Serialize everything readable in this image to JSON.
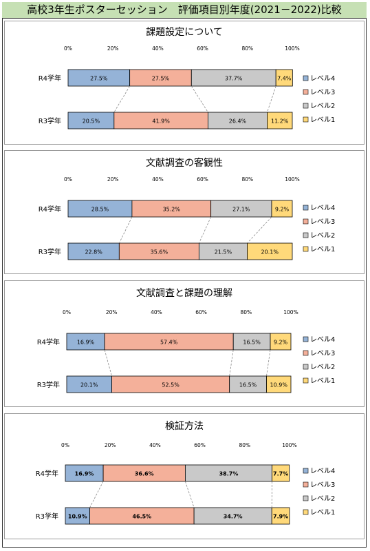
{
  "page": {
    "title": "高校3年生ポスターセッション　評価項目別年度(2021－2022)比較"
  },
  "colors": {
    "level4": "#95b3d7",
    "level3": "#f4b09a",
    "level2": "#c9c9c9",
    "level1": "#ffd97a",
    "title_bg": "#c6e0b4"
  },
  "chart_data": [
    {
      "type": "bar",
      "stacked": "horizontal-100%",
      "title": "課題設定について",
      "categories": [
        "R4学年",
        "R3学年"
      ],
      "series": [
        {
          "name": "レベル4",
          "values": [
            27.5,
            20.5
          ]
        },
        {
          "name": "レベル3",
          "values": [
            27.5,
            41.9
          ]
        },
        {
          "name": "レベル2",
          "values": [
            37.7,
            26.4
          ]
        },
        {
          "name": "レベル1",
          "values": [
            7.4,
            11.2
          ]
        }
      ],
      "labels": [
        [
          "27.5%",
          "27.5%",
          "37.7%",
          "7.4%"
        ],
        [
          "20.5%",
          "41.9%",
          "26.4%",
          "11.2%"
        ]
      ],
      "xticks": [
        "0%",
        "20%",
        "40%",
        "60%",
        "80%",
        "100%"
      ],
      "xlim": [
        0,
        100
      ],
      "grid": false,
      "legend": "right",
      "bold_labels": false
    },
    {
      "type": "bar",
      "stacked": "horizontal-100%",
      "title": "文献調査の客観性",
      "categories": [
        "R4学年",
        "R3学年"
      ],
      "series": [
        {
          "name": "レベル4",
          "values": [
            28.5,
            22.8
          ]
        },
        {
          "name": "レベル3",
          "values": [
            35.2,
            35.6
          ]
        },
        {
          "name": "レベル2",
          "values": [
            27.1,
            21.5
          ]
        },
        {
          "name": "レベル1",
          "values": [
            9.2,
            20.1
          ]
        }
      ],
      "labels": [
        [
          "28.5%",
          "35.2%",
          "27.1%",
          "9.2%"
        ],
        [
          "22.8%",
          "35.6%",
          "21.5%",
          "20.1%"
        ]
      ],
      "xticks": [
        "0%",
        "20%",
        "40%",
        "60%",
        "80%",
        "100%"
      ],
      "xlim": [
        0,
        100
      ],
      "grid": false,
      "legend": "right",
      "bold_labels": false
    },
    {
      "type": "bar",
      "stacked": "horizontal-100%",
      "title": "文献調査と課題の理解",
      "categories": [
        "R4学年",
        "R3学年"
      ],
      "series": [
        {
          "name": "レベル4",
          "values": [
            16.9,
            20.1
          ]
        },
        {
          "name": "レベル3",
          "values": [
            57.4,
            52.5
          ]
        },
        {
          "name": "レベル2",
          "values": [
            16.5,
            16.5
          ]
        },
        {
          "name": "レベル1",
          "values": [
            9.2,
            10.9
          ]
        }
      ],
      "labels": [
        [
          "16.9%",
          "57.4%",
          "16.5%",
          "9.2%"
        ],
        [
          "20.1%",
          "52.5%",
          "16.5%",
          "10.9%"
        ]
      ],
      "xticks": [
        "0%",
        "20%",
        "40%",
        "60%",
        "80%",
        "100%"
      ],
      "xlim": [
        0,
        100
      ],
      "grid": false,
      "legend": "right",
      "bold_labels": false
    },
    {
      "type": "bar",
      "stacked": "horizontal-100%",
      "title": "検証方法",
      "categories": [
        "R4学年",
        "R3学年"
      ],
      "series": [
        {
          "name": "レベル4",
          "values": [
            16.9,
            10.9
          ]
        },
        {
          "name": "レベル3",
          "values": [
            36.6,
            46.5
          ]
        },
        {
          "name": "レベル2",
          "values": [
            38.7,
            34.7
          ]
        },
        {
          "name": "レベル1",
          "values": [
            7.7,
            7.9
          ]
        }
      ],
      "labels": [
        [
          "16.9%",
          "36.6%",
          "38.7%",
          "7.7%"
        ],
        [
          "10.9%",
          "46.5%",
          "34.7%",
          "7.9%"
        ]
      ],
      "xticks": [
        "0%",
        "20%",
        "40%",
        "60%",
        "80%",
        "100%"
      ],
      "xlim": [
        0,
        100
      ],
      "grid": false,
      "legend": "right",
      "bold_labels": true
    }
  ]
}
